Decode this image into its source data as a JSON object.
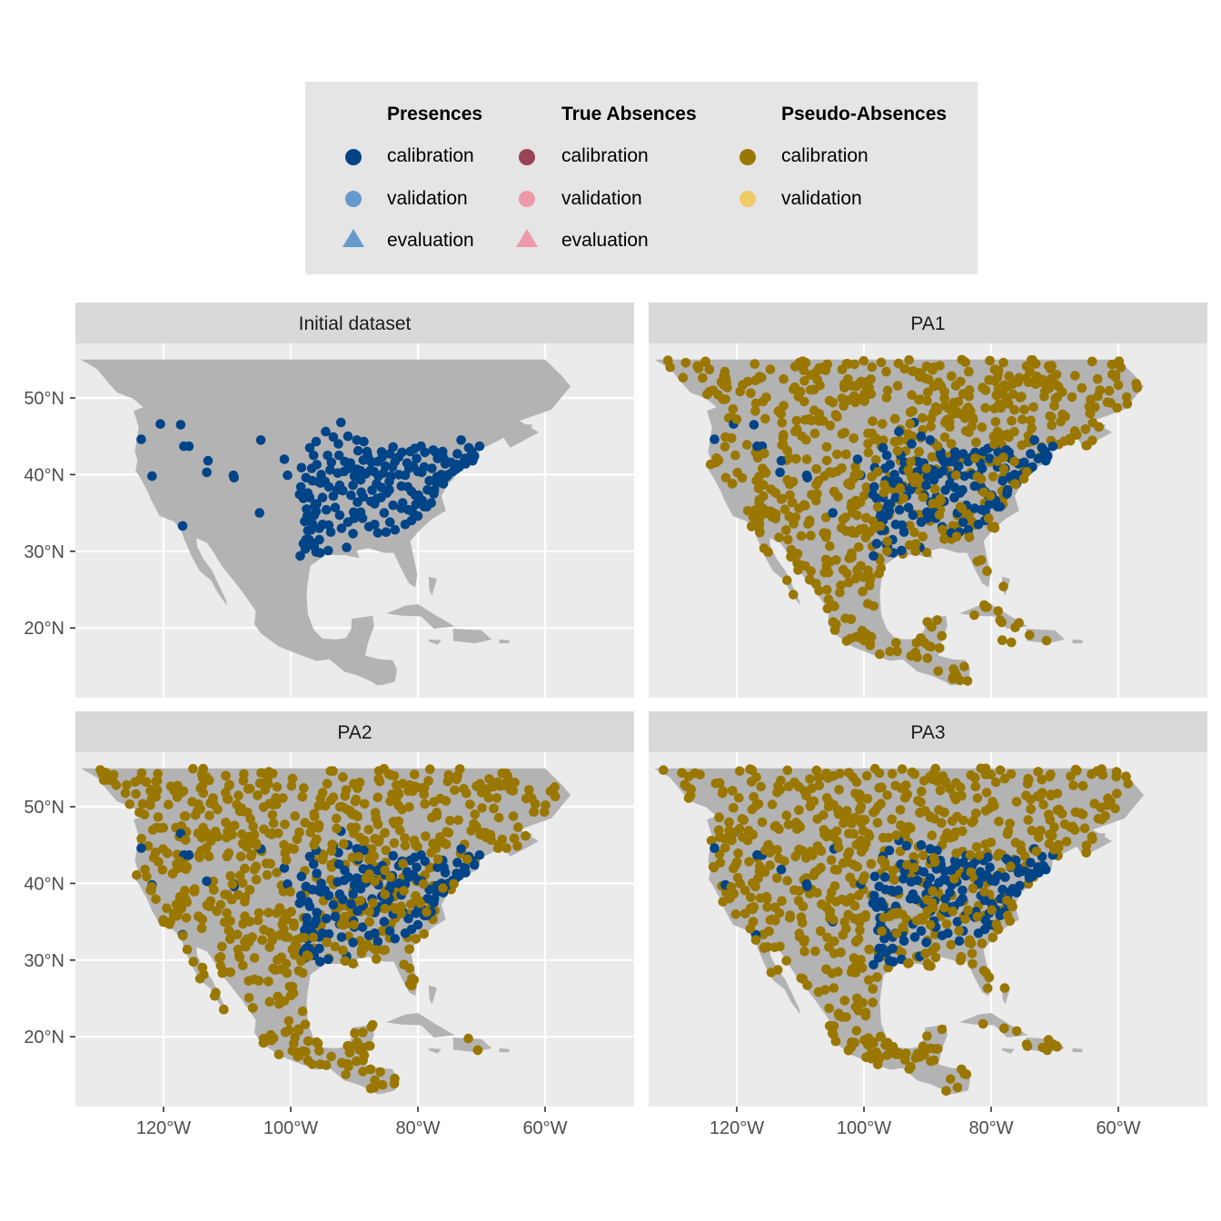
{
  "legend": {
    "groups": [
      {
        "title": "Presences",
        "items": [
          {
            "label": "calibration",
            "color": "#004488",
            "shape": "circle"
          },
          {
            "label": "validation",
            "color": "#6699CC",
            "shape": "circle"
          },
          {
            "label": "evaluation",
            "color": "#6699CC",
            "shape": "triangle"
          }
        ]
      },
      {
        "title": "True Absences",
        "items": [
          {
            "label": "calibration",
            "color": "#994455",
            "shape": "circle"
          },
          {
            "label": "validation",
            "color": "#EE99AA",
            "shape": "circle"
          },
          {
            "label": "evaluation",
            "color": "#EE99AA",
            "shape": "triangle"
          }
        ]
      },
      {
        "title": "Pseudo-Absences",
        "items": [
          {
            "label": "calibration",
            "color": "#997700",
            "shape": "circle"
          },
          {
            "label": "validation",
            "color": "#EECC66",
            "shape": "circle"
          }
        ]
      }
    ]
  },
  "chart_data": {
    "type": "scatter",
    "facets": [
      "Initial dataset",
      "PA1",
      "PA2",
      "PA3"
    ],
    "x_ticks": [
      "120°W",
      "100°W",
      "80°W",
      "60°W"
    ],
    "x_tick_values": [
      -120,
      -100,
      -80,
      -60
    ],
    "y_ticks": [
      "50°N",
      "40°N",
      "30°N",
      "20°N"
    ],
    "y_tick_values": [
      50,
      40,
      30,
      20
    ],
    "xlim": [
      -134,
      -46
    ],
    "ylim": [
      11,
      57
    ],
    "grid": true,
    "colors": {
      "panel_bg": "#EBEBEB",
      "land": "#B3B3B3",
      "strip_bg": "#D9D9D9",
      "legend_bg": "#E5E5E5",
      "presence_calibration": "#004488",
      "pseudo_absence_calibration": "#997700"
    },
    "presences_calibration": [
      [
        -123.5,
        44.6
      ],
      [
        -121.8,
        39.8
      ],
      [
        -120.5,
        46.6
      ],
      [
        -117.3,
        46.5
      ],
      [
        -116.8,
        43.7
      ],
      [
        -116.0,
        43.7
      ],
      [
        -117.0,
        33.3
      ],
      [
        -113.0,
        41.8
      ],
      [
        -113.2,
        40.3
      ],
      [
        -109.0,
        39.9
      ],
      [
        -108.9,
        39.6
      ],
      [
        -104.7,
        44.5
      ],
      [
        -104.9,
        35.0
      ],
      [
        -101.0,
        42.0
      ],
      [
        -100.5,
        39.9
      ],
      [
        -98.4,
        38.4
      ],
      [
        -97.3,
        37.6
      ],
      [
        -96.7,
        40.8
      ],
      [
        -95.9,
        41.3
      ],
      [
        -95.7,
        39.1
      ],
      [
        -94.6,
        39.1
      ],
      [
        -93.3,
        44.9
      ],
      [
        -93.6,
        41.6
      ],
      [
        -92.1,
        46.8
      ],
      [
        -91.5,
        41.7
      ],
      [
        -90.2,
        38.6
      ],
      [
        -89.4,
        43.1
      ],
      [
        -88.0,
        43.0
      ],
      [
        -87.6,
        41.9
      ],
      [
        -86.2,
        39.8
      ],
      [
        -85.6,
        42.3
      ],
      [
        -84.5,
        39.1
      ],
      [
        -84.4,
        42.7
      ],
      [
        -83.0,
        40.0
      ],
      [
        -83.0,
        42.3
      ],
      [
        -81.7,
        41.5
      ],
      [
        -80.0,
        40.4
      ],
      [
        -80.9,
        35.2
      ],
      [
        -79.0,
        35.8
      ],
      [
        -78.6,
        35.8
      ],
      [
        -77.5,
        37.5
      ],
      [
        -77.0,
        38.9
      ],
      [
        -76.6,
        39.3
      ],
      [
        -75.2,
        40.0
      ],
      [
        -74.0,
        40.7
      ],
      [
        -73.8,
        42.7
      ],
      [
        -72.7,
        41.8
      ],
      [
        -71.4,
        41.8
      ],
      [
        -71.1,
        42.4
      ],
      [
        -72.0,
        43.5
      ],
      [
        -73.2,
        44.5
      ],
      [
        -76.1,
        43.0
      ],
      [
        -77.6,
        43.2
      ],
      [
        -78.9,
        42.9
      ],
      [
        -80.2,
        42.1
      ],
      [
        -82.5,
        42.9
      ],
      [
        -83.9,
        43.6
      ],
      [
        -85.7,
        42.96
      ],
      [
        -86.3,
        32.4
      ],
      [
        -84.4,
        33.8
      ],
      [
        -85.3,
        35.0
      ],
      [
        -86.8,
        36.2
      ],
      [
        -89.0,
        35.1
      ],
      [
        -90.1,
        35.1
      ],
      [
        -92.3,
        34.7
      ],
      [
        -91.2,
        30.5
      ],
      [
        -90.2,
        32.3
      ],
      [
        -93.7,
        32.5
      ],
      [
        -94.4,
        35.4
      ],
      [
        -95.9,
        36.2
      ],
      [
        -97.5,
        35.5
      ],
      [
        -97.7,
        30.3
      ],
      [
        -96.8,
        32.8
      ],
      [
        -97.3,
        32.7
      ],
      [
        -95.4,
        29.8
      ],
      [
        -94.1,
        30.1
      ],
      [
        -97.1,
        31.5
      ],
      [
        -98.5,
        29.4
      ],
      [
        -96.3,
        30.6
      ],
      [
        -97.4,
        34.6
      ],
      [
        -97.8,
        33.9
      ],
      [
        -96.6,
        33.6
      ],
      [
        -95.0,
        37.0
      ],
      [
        -93.3,
        37.2
      ],
      [
        -92.3,
        38.6
      ],
      [
        -91.6,
        40.4
      ],
      [
        -92.4,
        42.5
      ],
      [
        -94.2,
        42.5
      ],
      [
        -96.4,
        42.5
      ],
      [
        -98.3,
        40.9
      ],
      [
        -97.0,
        43.5
      ],
      [
        -96.0,
        44.3
      ],
      [
        -94.5,
        45.6
      ],
      [
        -92.5,
        44.0
      ],
      [
        -91.0,
        45.0
      ],
      [
        -89.6,
        44.5
      ],
      [
        -88.5,
        44.3
      ],
      [
        -87.9,
        42.5
      ],
      [
        -89.0,
        40.5
      ],
      [
        -88.2,
        40.1
      ],
      [
        -87.2,
        37.97
      ],
      [
        -88.9,
        37.7
      ],
      [
        -86.5,
        38.8
      ],
      [
        -85.7,
        38.3
      ],
      [
        -84.9,
        37.6
      ],
      [
        -83.9,
        36.0
      ],
      [
        -82.4,
        36.3
      ],
      [
        -81.6,
        38.4
      ],
      [
        -80.4,
        37.3
      ],
      [
        -79.9,
        37.3
      ],
      [
        -78.2,
        39.2
      ],
      [
        -79.4,
        40.3
      ],
      [
        -77.8,
        40.8
      ],
      [
        -76.3,
        40.0
      ],
      [
        -75.7,
        41.4
      ],
      [
        -76.9,
        42.1
      ],
      [
        -75.9,
        42.1
      ],
      [
        -74.8,
        41.6
      ],
      [
        -74.5,
        40.4
      ],
      [
        -75.5,
        39.7
      ],
      [
        -73.5,
        41.0
      ],
      [
        -72.5,
        41.4
      ],
      [
        -71.8,
        42.3
      ],
      [
        -71.5,
        43.0
      ],
      [
        -70.3,
        43.7
      ],
      [
        -72.6,
        42.1
      ],
      [
        -73.9,
        41.3
      ],
      [
        -77.2,
        42.9
      ],
      [
        -79.5,
        43.7
      ],
      [
        -81.2,
        43.0
      ],
      [
        -80.5,
        43.4
      ],
      [
        -84.0,
        41.0
      ],
      [
        -83.6,
        41.7
      ],
      [
        -85.1,
        41.1
      ],
      [
        -86.3,
        41.7
      ],
      [
        -87.3,
        41.6
      ],
      [
        -88.6,
        41.9
      ],
      [
        -90.6,
        41.5
      ],
      [
        -90.9,
        40.8
      ],
      [
        -89.6,
        40.7
      ],
      [
        -87.5,
        40.5
      ],
      [
        -86.9,
        40.4
      ],
      [
        -85.4,
        40.2
      ],
      [
        -84.2,
        39.8
      ],
      [
        -82.0,
        39.9
      ],
      [
        -81.4,
        40.8
      ],
      [
        -80.7,
        41.1
      ],
      [
        -79.0,
        41.0
      ],
      [
        -77.0,
        39.7
      ],
      [
        -76.0,
        38.8
      ],
      [
        -77.4,
        38.0
      ],
      [
        -78.5,
        38.0
      ],
      [
        -81.0,
        37.8
      ],
      [
        -82.6,
        38.5
      ],
      [
        -84.5,
        38.0
      ],
      [
        -85.8,
        37.0
      ],
      [
        -86.4,
        36.9
      ],
      [
        -87.4,
        36.5
      ],
      [
        -88.6,
        37.1
      ],
      [
        -89.5,
        36.4
      ],
      [
        -90.5,
        37.3
      ],
      [
        -91.8,
        37.9
      ],
      [
        -92.7,
        38.0
      ],
      [
        -94.0,
        38.4
      ],
      [
        -95.3,
        38.9
      ],
      [
        -96.6,
        39.2
      ],
      [
        -97.6,
        39.6
      ],
      [
        -98.0,
        36.9
      ],
      [
        -96.0,
        35.2
      ],
      [
        -95.0,
        33.5
      ],
      [
        -94.0,
        33.4
      ],
      [
        -92.0,
        33.0
      ],
      [
        -91.0,
        33.8
      ],
      [
        -90.0,
        34.3
      ],
      [
        -88.7,
        34.3
      ],
      [
        -87.7,
        33.2
      ],
      [
        -86.8,
        33.5
      ],
      [
        -85.0,
        32.5
      ],
      [
        -83.6,
        32.8
      ],
      [
        -82.0,
        33.5
      ],
      [
        -81.0,
        34.0
      ],
      [
        -80.0,
        34.6
      ],
      [
        -82.6,
        35.6
      ],
      [
        -81.5,
        35.4
      ],
      [
        -80.3,
        36.1
      ],
      [
        -79.3,
        36.6
      ],
      [
        -77.9,
        36.3
      ],
      [
        -96.2,
        36.0
      ],
      [
        -93.0,
        35.7
      ],
      [
        -89.0,
        39.3
      ],
      [
        -90.0,
        39.8
      ],
      [
        -92.6,
        40.2
      ],
      [
        -93.8,
        40.6
      ],
      [
        -95.2,
        40.0
      ],
      [
        -97.0,
        37.0
      ],
      [
        -98.6,
        37.4
      ],
      [
        -97.6,
        31.5
      ],
      [
        -96.0,
        29.9
      ],
      [
        -98.0,
        31.0
      ],
      [
        -96.5,
        31.0
      ],
      [
        -95.5,
        31.5
      ],
      [
        -95.5,
        33.0
      ],
      [
        -97.0,
        34.0
      ],
      [
        -96.3,
        34.7
      ]
    ]
  }
}
